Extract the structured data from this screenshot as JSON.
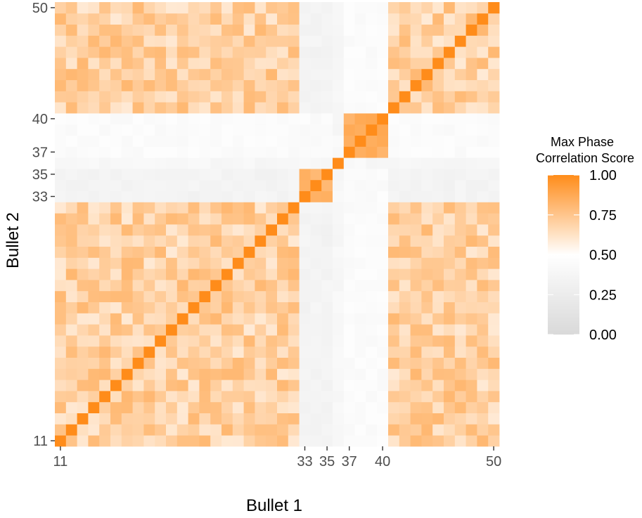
{
  "chart_data": {
    "type": "heatmap",
    "xlabel": "Bullet 1",
    "ylabel": "Bullet 2",
    "x_range": [
      11,
      50
    ],
    "y_range": [
      11,
      50
    ],
    "x_ticks": [
      11,
      33,
      35,
      37,
      40,
      50
    ],
    "y_ticks": [
      11,
      33,
      35,
      37,
      40,
      50
    ],
    "grid": false,
    "colors": {
      "low": "#d9d9d9",
      "mid": "#ffffff",
      "high": "#ff8c1a"
    },
    "legend": {
      "title_lines": [
        "Max Phase",
        "Correlation Score"
      ],
      "ticks": [
        1.0,
        0.75,
        0.5,
        0.25,
        0.0
      ],
      "tick_labels": [
        "1.00",
        "0.75",
        "0.50",
        "0.25",
        "0.00"
      ],
      "range": [
        0,
        1
      ],
      "midpoint": 0.5,
      "placement": "right"
    },
    "blocks": {
      "group_a": {
        "bullets": "11-32, 41-50",
        "typical_score": 0.7
      },
      "group_b": {
        "bullets": "33-35",
        "typical_score": 0.82
      },
      "group_c": {
        "bullets": "37-40",
        "typical_score": 0.85
      },
      "diagonal_score": 1.0,
      "a_vs_b_score": 0.35,
      "a_vs_c_score": 0.45,
      "b_vs_c_score": 0.45,
      "bullet_36_score": 0.4
    }
  }
}
